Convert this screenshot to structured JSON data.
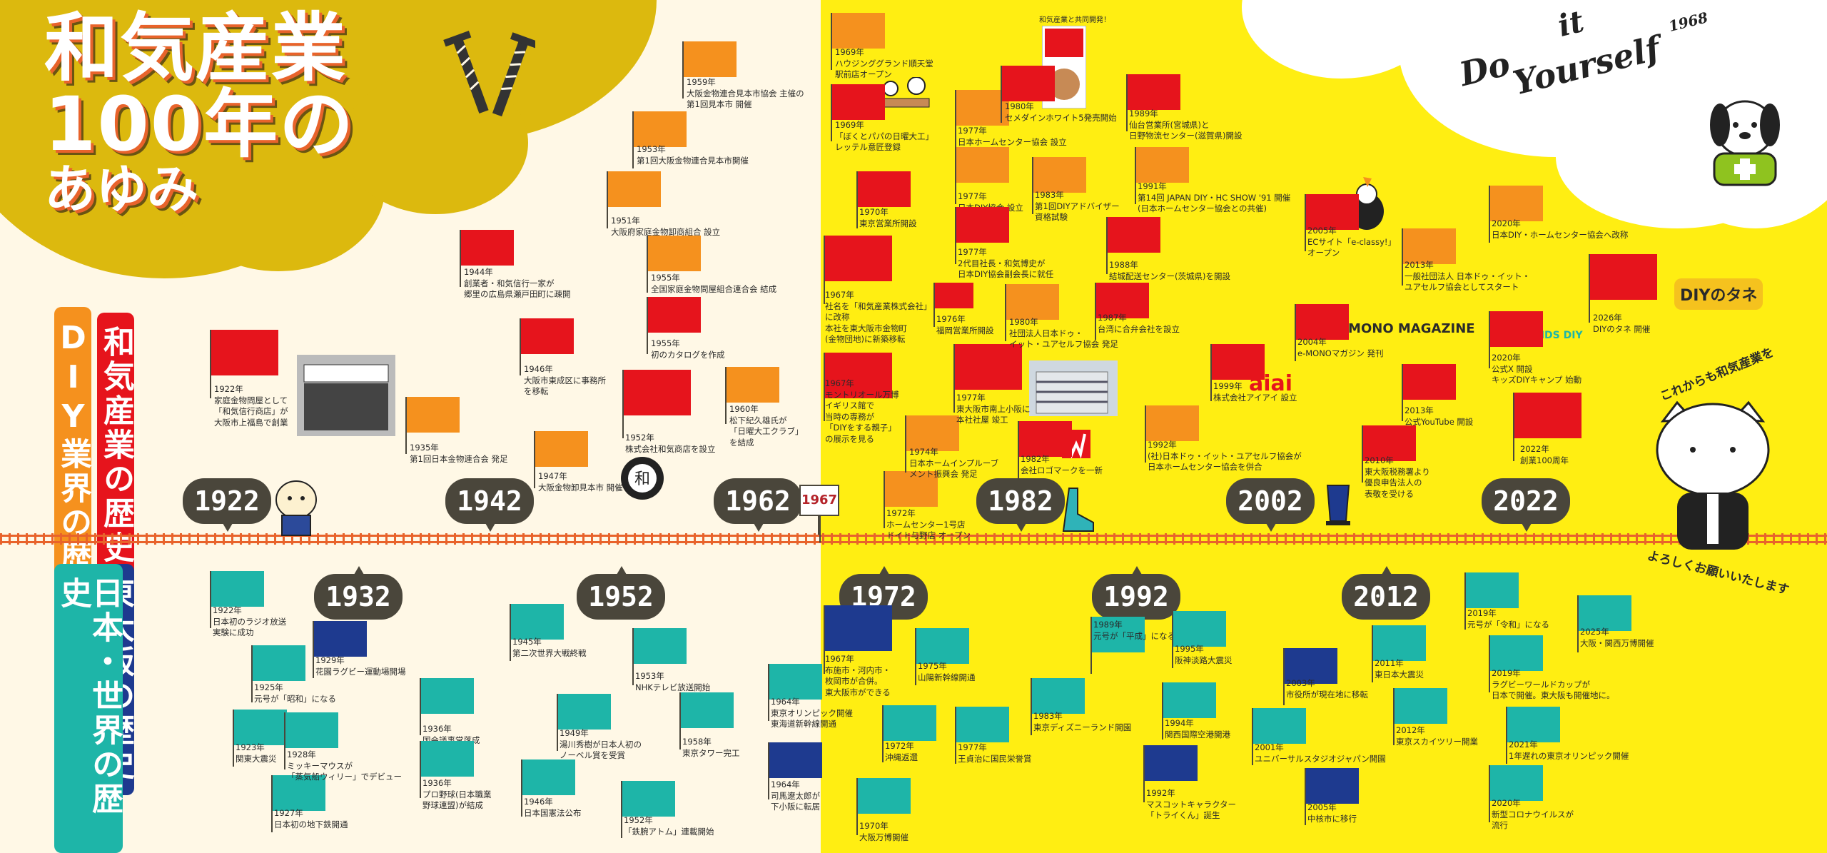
{
  "title": {
    "line1": "和気産業",
    "line2": "100年の",
    "line3": "あゆみ"
  },
  "side_labels": {
    "company": "和気産業の歴史",
    "diy": "DIY業界の歴史",
    "osaka": "東大阪の歴史",
    "world": "日本・世界の歴史"
  },
  "decade_labels": {
    "top": [
      "1922",
      "1942",
      "1962",
      "1982",
      "2002",
      "2022"
    ],
    "bottom": [
      "1932",
      "1952",
      "1972",
      "1992",
      "2012"
    ],
    "special": "1967"
  },
  "diy_slogan": {
    "line1": "Do",
    "line2": "it",
    "line3": "Yourself",
    "year": "1968"
  },
  "collab_note": "和気産業と共同開発！",
  "logos": {
    "emono": "e·MONO MAGAZINE",
    "aiai": "aiai",
    "diy_tane": "DIYのタネ",
    "kids_diy": "KIDS DIY"
  },
  "closing": {
    "line1": "これからも和気産業を",
    "line2": "よろしくお願いいたします"
  },
  "colors": {
    "orange_flag": "#f5911e",
    "red_flag": "#e6141c",
    "teal_flag": "#1eb5a8",
    "navy_flag": "#1e3a8f",
    "bubble": "#4a463b",
    "yellow_bg": "#ffee12",
    "cream_bg": "#fff8e6"
  },
  "events_top": [
    {
      "id": "e1922",
      "text": "1922年\n家庭金物問屋として\n「和気信行商店」が\n大阪市上福島で創業",
      "color": "red"
    },
    {
      "id": "e1935",
      "text": "1935年\n第1回日本金物連合会 発足",
      "color": "orange"
    },
    {
      "id": "e1944",
      "text": "1944年\n創業者・和気信行一家が\n郷里の広島県瀬戸田町に疎開",
      "color": "red"
    },
    {
      "id": "e1946",
      "text": "1946年\n大阪市東成区に事務所\nを移転",
      "color": "red"
    },
    {
      "id": "e1947",
      "text": "1947年\n大阪金物卸見本市 開催",
      "color": "orange"
    },
    {
      "id": "e1951",
      "text": "1951年\n大阪府家庭金物卸商組合 設立",
      "color": "orange"
    },
    {
      "id": "e1952",
      "text": "1952年\n株式会社和気商店を設立",
      "color": "red"
    },
    {
      "id": "e1953",
      "text": "1953年\n第1回大阪金物連合見本市開催",
      "color": "orange"
    },
    {
      "id": "e1955a",
      "text": "1955年\n全国家庭金物問屋組合連合会 結成",
      "color": "orange"
    },
    {
      "id": "e1955b",
      "text": "1955年\n初のカタログを作成",
      "color": "red"
    },
    {
      "id": "e1959",
      "text": "1959年\n大阪金物連合見本市協会 主催の\n第1回見本市 開催",
      "color": "orange"
    },
    {
      "id": "e1960",
      "text": "1960年\n松下紀久雄氏が\n「日曜大工クラブ」\nを結成",
      "color": "orange"
    },
    {
      "id": "e1969a",
      "text": "1969年\nハウジンググランド順天堂\n駅前店オープン",
      "color": "orange"
    },
    {
      "id": "e1969b",
      "text": "1969年\n「ぼくとパパの日曜大工」\nレッテル意匠登録",
      "color": "red"
    },
    {
      "id": "e1967a",
      "text": "1967年\n社名を「和気産業株式会社」\nに改称\n本社を東大阪市金物町\n(金物団地)に新築移転",
      "color": "red"
    },
    {
      "id": "e1967b",
      "text": "1967年\nモントリオール万博\nイギリス館で\n当時の専務が\n「DIYをする親子」\nの展示を見る",
      "color": "red"
    },
    {
      "id": "e1970",
      "text": "1970年\n東京営業所開設",
      "color": "red"
    },
    {
      "id": "e1972",
      "text": "1972年\nホームセンター1号店\nドイト与野店 オープン",
      "color": "orange"
    },
    {
      "id": "e1974",
      "text": "1974年\n日本ホームインプルーブ\nメント振興会 発足",
      "color": "orange"
    },
    {
      "id": "e1976",
      "text": "1976年\n福岡営業所開設",
      "color": "red"
    },
    {
      "id": "e1977a",
      "text": "1977年\n日本ホームセンター協会 設立",
      "color": "orange"
    },
    {
      "id": "e1977b",
      "text": "1977年\n日本DIY協会 設立",
      "color": "orange"
    },
    {
      "id": "e1977c",
      "text": "1977年\n2代目社長・和気博史が\n日本DIY協会副会長に就任",
      "color": "red"
    },
    {
      "id": "e1977d",
      "text": "1977年\n東大阪市南上小阪に\n本社社屋 竣工",
      "color": "red"
    },
    {
      "id": "e1980a",
      "text": "1980年\nセメダインホワイト5発売開始",
      "color": "red"
    },
    {
      "id": "e1980b",
      "text": "1980年\n社団法人日本ドゥ・\nイット・ユアセルフ協会 発足",
      "color": "orange"
    },
    {
      "id": "e1982",
      "text": "1982年\n会社ロゴマークを一新",
      "color": "red"
    },
    {
      "id": "e1983",
      "text": "1983年\n第1回DIYアドバイザー\n資格試験",
      "color": "orange"
    },
    {
      "id": "e1987",
      "text": "1987年\n台湾に合弁会社を設立",
      "color": "red"
    },
    {
      "id": "e1988",
      "text": "1988年\n結城配送センター(茨城県)を開設",
      "color": "red"
    },
    {
      "id": "e1989",
      "text": "1989年\n仙台営業所(宮城県)と\n日野物流センター(滋賀県)開設",
      "color": "red"
    },
    {
      "id": "e1991",
      "text": "1991年\n第14回 JAPAN DIY・HC SHOW '91 開催\n(日本ホームセンター協会との共催)",
      "color": "orange"
    },
    {
      "id": "e1992",
      "text": "1992年\n(社)日本ドゥ・イット・ユアセルフ協会が\n日本ホームセンター協会を併合",
      "color": "orange"
    },
    {
      "id": "e1999",
      "text": "1999年\n株式会社アイアイ 設立",
      "color": "red"
    },
    {
      "id": "e2004",
      "text": "2004年\ne-MONOマガジン 発刊",
      "color": "red"
    },
    {
      "id": "e2005",
      "text": "2005年\nECサイト「e-classy!」\nオープン",
      "color": "red"
    },
    {
      "id": "e2010",
      "text": "2010年\n東大阪税務署より\n優良申告法人の\n表敬を受ける",
      "color": "red"
    },
    {
      "id": "e2013a",
      "text": "2013年\n一般社団法人 日本ドゥ・イット・\nユアセルフ協会としてスタート",
      "color": "orange"
    },
    {
      "id": "e2013b",
      "text": "2013年\n公式YouTube 開設",
      "color": "red"
    },
    {
      "id": "e2020a",
      "text": "2020年\n日本DIY・ホームセンター協会へ改称",
      "color": "orange"
    },
    {
      "id": "e2020b",
      "text": "2020年\n公式X 開設\nキッズDIYキャンプ 始動",
      "color": "red"
    },
    {
      "id": "e2022",
      "text": "2022年\n創業100周年",
      "color": "red"
    },
    {
      "id": "e2026",
      "text": "2026年\nDIYのタネ 開催",
      "color": "red"
    }
  ],
  "events_bottom": [
    {
      "id": "b1922",
      "text": "1922年\n日本初のラジオ放送\n実験に成功",
      "color": "teal"
    },
    {
      "id": "b1923",
      "text": "1923年\n関東大震災",
      "color": "teal"
    },
    {
      "id": "b1925",
      "text": "1925年\n元号が「昭和」になる",
      "color": "teal"
    },
    {
      "id": "b1927",
      "text": "1927年\n日本初の地下鉄開通",
      "color": "teal"
    },
    {
      "id": "b1928",
      "text": "1928年\nミッキーマウスが\n「蒸気船ウィリー」でデビュー",
      "color": "teal"
    },
    {
      "id": "b1929",
      "text": "1929年\n花園ラグビー運動場開場",
      "color": "navy"
    },
    {
      "id": "b1936a",
      "text": "1936年\n国会議事堂落成",
      "color": "teal"
    },
    {
      "id": "b1936b",
      "text": "1936年\nプロ野球(日本職業\n野球連盟)が結成",
      "color": "teal"
    },
    {
      "id": "b1945",
      "text": "1945年\n第二次世界大戦終戦",
      "color": "teal"
    },
    {
      "id": "b1946",
      "text": "1946年\n日本国憲法公布",
      "color": "teal"
    },
    {
      "id": "b1949",
      "text": "1949年\n湯川秀樹が日本人初の\nノーベル賞を受賞",
      "color": "teal"
    },
    {
      "id": "b1952",
      "text": "1952年\n「鉄腕アトム」連載開始",
      "color": "teal"
    },
    {
      "id": "b1953",
      "text": "1953年\nNHKテレビ放送開始",
      "color": "teal"
    },
    {
      "id": "b1958",
      "text": "1958年\n東京タワー完工",
      "color": "teal"
    },
    {
      "id": "b1964a",
      "text": "1964年\n東京オリンピック開催\n東海道新幹線開通",
      "color": "teal"
    },
    {
      "id": "b1964b",
      "text": "1964年\n司馬遼太郎が\n下小阪に転居",
      "color": "navy"
    },
    {
      "id": "b1967",
      "text": "1967年\n布施市・河内市・\n枚岡市が合併。\n東大阪市ができる",
      "color": "navy"
    },
    {
      "id": "b1970",
      "text": "1970年\n大阪万博開催",
      "color": "teal"
    },
    {
      "id": "b1972",
      "text": "1972年\n沖縄返還",
      "color": "teal"
    },
    {
      "id": "b1975",
      "text": "1975年\n山陽新幹線開通",
      "color": "teal"
    },
    {
      "id": "b1977",
      "text": "1977年\n王貞治に国民栄誉賞",
      "color": "teal"
    },
    {
      "id": "b1983",
      "text": "1983年\n東京ディズニーランド開園",
      "color": "teal"
    },
    {
      "id": "b1989",
      "text": "1989年\n元号が「平成」になる",
      "color": "teal"
    },
    {
      "id": "b1992",
      "text": "1992年\nマスコットキャラクター\n「トライくん」誕生",
      "color": "navy"
    },
    {
      "id": "b1994",
      "text": "1994年\n関西国際空港開港",
      "color": "teal"
    },
    {
      "id": "b1995",
      "text": "1995年\n阪神淡路大震災",
      "color": "teal"
    },
    {
      "id": "b2001",
      "text": "2001年\nユニバーサルスタジオジャパン開園",
      "color": "teal"
    },
    {
      "id": "b2003",
      "text": "2003年\n市役所が現在地に移転",
      "color": "navy"
    },
    {
      "id": "b2005",
      "text": "2005年\n中核市に移行",
      "color": "navy"
    },
    {
      "id": "b2011",
      "text": "2011年\n東日本大震災",
      "color": "teal"
    },
    {
      "id": "b2012",
      "text": "2012年\n東京スカイツリー開業",
      "color": "teal"
    },
    {
      "id": "b2019a",
      "text": "2019年\n元号が「令和」になる",
      "color": "teal"
    },
    {
      "id": "b2019b",
      "text": "2019年\nラグビーワールドカップが\n日本で開催。東大阪も開催地に。",
      "color": "teal"
    },
    {
      "id": "b2020",
      "text": "2020年\n新型コロナウイルスが\n流行",
      "color": "teal"
    },
    {
      "id": "b2021",
      "text": "2021年\n1年遅れの東京オリンピック開催",
      "color": "teal"
    },
    {
      "id": "b2025",
      "text": "2025年\n大阪・関西万博開催",
      "color": "teal"
    }
  ]
}
